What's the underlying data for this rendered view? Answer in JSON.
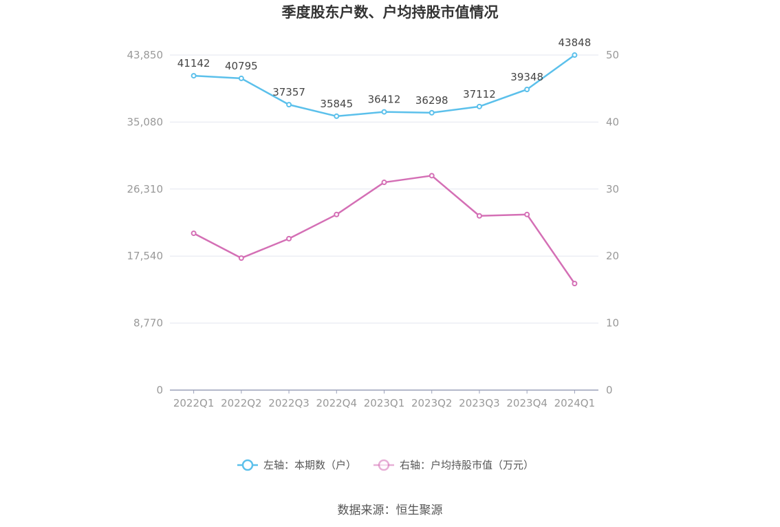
{
  "chart_data": {
    "type": "line",
    "title": "季度股东户数、户均持股市值情况",
    "categories": [
      "2022Q1",
      "2022Q2",
      "2022Q3",
      "2022Q4",
      "2023Q1",
      "2023Q2",
      "2023Q3",
      "2023Q4",
      "2024Q1"
    ],
    "left_axis": {
      "ticks": [
        "0",
        "8,770",
        "17,540",
        "26,310",
        "35,080",
        "43,850"
      ],
      "max": 43850
    },
    "right_axis": {
      "ticks": [
        "0",
        "10",
        "20",
        "30",
        "40",
        "50"
      ],
      "max": 50
    },
    "series": [
      {
        "name": "左轴：本期数（户）",
        "axis": "left",
        "color": "#5bc0eb",
        "values": [
          41142,
          40795,
          37357,
          35845,
          36412,
          36298,
          37112,
          39348,
          43848
        ],
        "labels": [
          "41142",
          "40795",
          "37357",
          "35845",
          "36412",
          "36298",
          "37112",
          "39348",
          "43848"
        ]
      },
      {
        "name": "右轴：户均持股市值（万元）",
        "axis": "right",
        "color": "#d46fb5",
        "values": [
          23.4,
          19.7,
          22.6,
          26.2,
          31.0,
          32.0,
          26.0,
          26.2,
          15.9
        ]
      }
    ],
    "grid": true,
    "legend_position": "bottom"
  },
  "source": "数据来源：恒生聚源"
}
